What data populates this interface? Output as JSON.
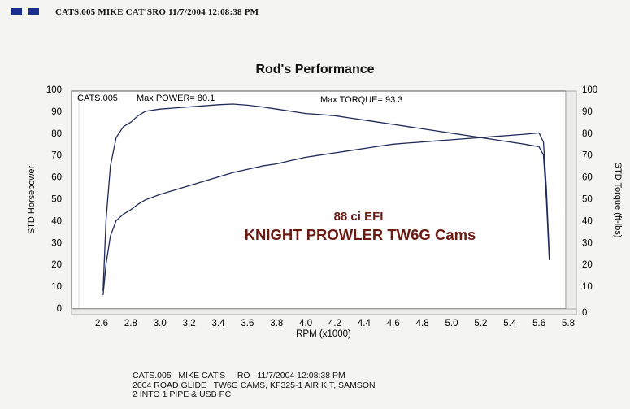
{
  "header": {
    "text": "CATS.005   MIKE CAT'SRO  11/7/2004 12:08:38 PM",
    "accent_color": "#1a2d8c"
  },
  "chart_data": {
    "type": "line",
    "title": "Rod's Performance",
    "xlabel": "RPM (x1000)",
    "ylabel_left": "STD Horsepower",
    "ylabel_right": "STD Torque (ft-lbs)",
    "xlim": [
      2.4,
      5.8
    ],
    "ylim": [
      0,
      100
    ],
    "x_ticks": [
      "2.6",
      "2.8",
      "3.0",
      "3.2",
      "3.4",
      "3.6",
      "3.8",
      "4.0",
      "4.2",
      "4.4",
      "4.6",
      "4.8",
      "5.0",
      "5.2",
      "5.4",
      "5.6",
      "5.8"
    ],
    "y_ticks_left": [
      "0",
      "10",
      "20",
      "30",
      "40",
      "50",
      "60",
      "70",
      "80",
      "90",
      "100"
    ],
    "y_ticks_right": [
      "0",
      "10",
      "20",
      "30",
      "40",
      "50",
      "60",
      "70",
      "80",
      "90",
      "100"
    ],
    "annotations": {
      "run_id": "CATS.005",
      "max_power": "Max POWER= 80.1",
      "max_torque": "Max TORQUE= 93.3",
      "engine": "88 ci EFI",
      "cams": "KNIGHT PROWLER TW6G Cams"
    },
    "series": [
      {
        "name": "",
        "axis": "right",
        "x": [
          2.61,
          2.63,
          2.66,
          2.7,
          2.75,
          2.8,
          2.85,
          2.9,
          3.0,
          3.1,
          3.2,
          3.3,
          3.4,
          3.5,
          3.6,
          3.7,
          3.8,
          3.9,
          4.0,
          4.1,
          4.2,
          4.3,
          4.4,
          4.5,
          4.6,
          4.7,
          4.8,
          4.9,
          5.0,
          5.1,
          5.2,
          5.3,
          5.4,
          5.5,
          5.6,
          5.63,
          5.65,
          5.67
        ],
        "y": [
          8,
          40,
          65,
          78,
          83,
          85,
          88,
          90,
          91,
          91.5,
          92,
          92.5,
          93,
          93.3,
          92.8,
          92,
          91,
          90,
          89,
          88.5,
          88,
          87,
          86,
          85,
          84,
          83,
          82,
          81,
          80,
          79,
          78,
          77,
          76,
          75,
          73.8,
          70,
          50,
          22
        ]
      },
      {
        "name": "",
        "axis": "left",
        "x": [
          2.61,
          2.63,
          2.66,
          2.7,
          2.75,
          2.8,
          2.85,
          2.9,
          3.0,
          3.1,
          3.2,
          3.3,
          3.4,
          3.5,
          3.6,
          3.7,
          3.8,
          3.9,
          4.0,
          4.1,
          4.2,
          4.3,
          4.4,
          4.5,
          4.6,
          4.7,
          4.8,
          4.9,
          5.0,
          5.1,
          5.2,
          5.3,
          5.4,
          5.5,
          5.6,
          5.63,
          5.65,
          5.67
        ],
        "y": [
          6,
          20,
          33,
          40,
          43,
          45,
          47.5,
          49.5,
          52,
          54,
          56,
          58,
          60,
          62,
          63.5,
          65,
          66,
          67.5,
          69,
          70,
          71,
          72,
          73,
          74,
          75,
          75.5,
          76,
          76.5,
          77,
          77.5,
          78,
          78.5,
          79,
          79.5,
          80.1,
          76,
          55,
          24
        ]
      }
    ]
  },
  "footer": {
    "line1": "CATS.005   MIKE CAT'S     RO   11/7/2004 12:08:38 PM",
    "line2": "2004 ROAD GLIDE   TW6G CAMS, KF325-1 AIR KIT, SAMSON",
    "line3": "2 INTO 1 PIPE & USB PC"
  },
  "colors": {
    "line": "#1f2a5c",
    "annotation_red": "#6b1a12",
    "frame": "#555555",
    "plot_bg": "#ffffff"
  }
}
